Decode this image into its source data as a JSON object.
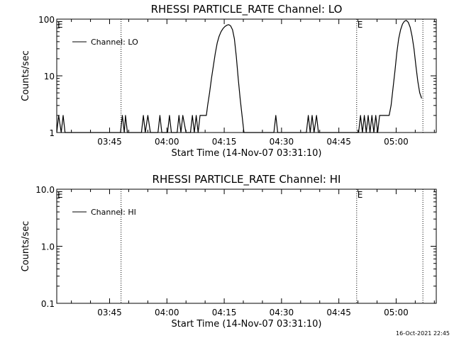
{
  "timestamp": "16-Oct-2021 22:45",
  "chart_data": [
    {
      "type": "line",
      "title": "RHESSI PARTICLE_RATE Channel: LO",
      "xlabel": "Start Time (14-Nov-07 03:31:10)",
      "ylabel": "Counts/sec",
      "yscale": "log",
      "ylim": [
        1,
        100
      ],
      "xlim": [
        "03:31:10",
        "05:10:30"
      ],
      "x_ticks": [
        "03:45",
        "04:00",
        "04:15",
        "04:30",
        "04:45",
        "05:00"
      ],
      "y_ticks": [
        "1",
        "10",
        "100"
      ],
      "legend": {
        "label": "Channel: LO",
        "placement": "top-left"
      },
      "markers": [
        {
          "label": "E",
          "time": "03:31:10"
        },
        {
          "label": "",
          "time": "03:48:00"
        },
        {
          "label": "E",
          "time": "04:49:40"
        },
        {
          "label": "",
          "time": "05:07:00"
        }
      ],
      "series": [
        {
          "name": "Channel: LO",
          "points": [
            [
              "03:31:10",
              1
            ],
            [
              "03:31:40",
              2
            ],
            [
              "03:32:20",
              1
            ],
            [
              "03:32:50",
              2
            ],
            [
              "03:33:20",
              1
            ],
            [
              "03:47:50",
              1
            ],
            [
              "03:48:20",
              2
            ],
            [
              "03:48:50",
              1
            ],
            [
              "03:49:10",
              2
            ],
            [
              "03:49:40",
              1
            ],
            [
              "03:53:20",
              1
            ],
            [
              "03:53:50",
              2
            ],
            [
              "03:54:20",
              1
            ],
            [
              "03:55:00",
              2
            ],
            [
              "03:55:40",
              1
            ],
            [
              "03:57:40",
              1
            ],
            [
              "03:58:10",
              2
            ],
            [
              "03:58:40",
              1
            ],
            [
              "04:00:10",
              1
            ],
            [
              "04:00:40",
              2
            ],
            [
              "04:01:10",
              1
            ],
            [
              "04:02:40",
              1
            ],
            [
              "04:03:10",
              2
            ],
            [
              "04:03:40",
              1
            ],
            [
              "04:04:10",
              2
            ],
            [
              "04:05:00",
              1
            ],
            [
              "04:06:10",
              1
            ],
            [
              "04:06:40",
              2
            ],
            [
              "04:07:10",
              1
            ],
            [
              "04:07:40",
              2
            ],
            [
              "04:08:10",
              1
            ],
            [
              "04:08:40",
              2
            ],
            [
              "04:09:40",
              2
            ],
            [
              "04:10:20",
              2
            ],
            [
              "04:10:40",
              3
            ],
            [
              "04:11:10",
              5
            ],
            [
              "04:11:40",
              9
            ],
            [
              "04:12:10",
              15
            ],
            [
              "04:12:40",
              25
            ],
            [
              "04:13:10",
              38
            ],
            [
              "04:13:40",
              50
            ],
            [
              "04:14:10",
              60
            ],
            [
              "04:14:40",
              68
            ],
            [
              "04:15:10",
              74
            ],
            [
              "04:15:40",
              78
            ],
            [
              "04:16:10",
              80
            ],
            [
              "04:16:40",
              76
            ],
            [
              "04:17:10",
              65
            ],
            [
              "04:17:40",
              45
            ],
            [
              "04:18:10",
              22
            ],
            [
              "04:18:40",
              9
            ],
            [
              "04:19:10",
              4
            ],
            [
              "04:19:40",
              2
            ],
            [
              "04:20:10",
              1
            ],
            [
              "04:28:00",
              1
            ],
            [
              "04:28:30",
              2
            ],
            [
              "04:29:00",
              1
            ],
            [
              "04:36:30",
              1
            ],
            [
              "04:37:00",
              2
            ],
            [
              "04:37:30",
              1
            ],
            [
              "04:38:00",
              2
            ],
            [
              "04:38:30",
              1
            ],
            [
              "04:39:10",
              2
            ],
            [
              "04:39:40",
              1
            ],
            [
              "04:50:10",
              1
            ],
            [
              "04:50:40",
              2
            ],
            [
              "04:51:10",
              1
            ],
            [
              "04:51:40",
              2
            ],
            [
              "04:52:10",
              1
            ],
            [
              "04:52:40",
              2
            ],
            [
              "04:53:10",
              1
            ],
            [
              "04:53:40",
              2
            ],
            [
              "04:54:10",
              1
            ],
            [
              "04:54:40",
              2
            ],
            [
              "04:55:10",
              1
            ],
            [
              "04:55:40",
              2
            ],
            [
              "04:56:40",
              2
            ],
            [
              "04:57:10",
              2
            ],
            [
              "04:58:10",
              2
            ],
            [
              "04:58:40",
              3
            ],
            [
              "04:59:10",
              6
            ],
            [
              "04:59:40",
              12
            ],
            [
              "05:00:10",
              25
            ],
            [
              "05:00:40",
              45
            ],
            [
              "05:01:10",
              65
            ],
            [
              "05:01:40",
              82
            ],
            [
              "05:02:10",
              92
            ],
            [
              "05:02:40",
              95
            ],
            [
              "05:03:10",
              88
            ],
            [
              "05:03:40",
              72
            ],
            [
              "05:04:10",
              50
            ],
            [
              "05:04:40",
              30
            ],
            [
              "05:05:10",
              15
            ],
            [
              "05:05:40",
              8
            ],
            [
              "05:06:10",
              5
            ],
            [
              "05:06:40",
              4
            ]
          ]
        }
      ]
    },
    {
      "type": "line",
      "title": "RHESSI PARTICLE_RATE Channel: HI",
      "xlabel": "Start Time (14-Nov-07 03:31:10)",
      "ylabel": "Counts/sec",
      "yscale": "log",
      "ylim": [
        0.1,
        10
      ],
      "xlim": [
        "03:31:10",
        "05:10:30"
      ],
      "x_ticks": [
        "03:45",
        "04:00",
        "04:15",
        "04:30",
        "04:45",
        "05:00"
      ],
      "y_ticks": [
        "0.1",
        "1.0",
        "10.0"
      ],
      "legend": {
        "label": "Channel: HI",
        "placement": "top-left"
      },
      "markers": [
        {
          "label": "E",
          "time": "03:31:10"
        },
        {
          "label": "",
          "time": "03:48:00"
        },
        {
          "label": "E",
          "time": "04:49:40"
        },
        {
          "label": "",
          "time": "05:07:00"
        }
      ],
      "series": [
        {
          "name": "Channel: HI",
          "points": []
        }
      ]
    }
  ]
}
